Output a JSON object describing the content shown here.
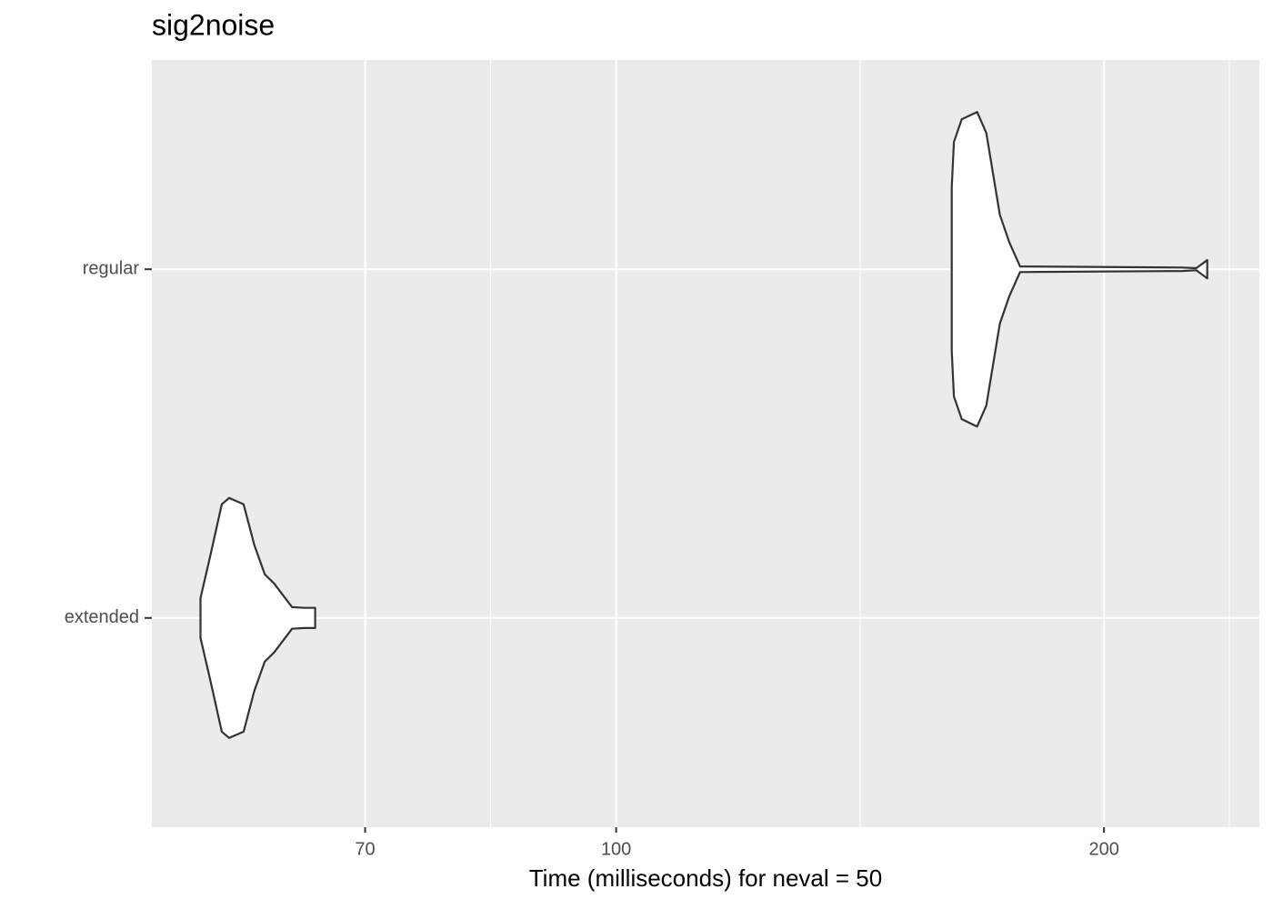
{
  "chart_data": {
    "type": "violin",
    "title": "sig2noise",
    "x_label": "Time (milliseconds) for neval = 50",
    "categories": [
      "extended",
      "regular"
    ],
    "xscale": "log",
    "xlim": [
      51.7,
      249.4
    ],
    "xticks": [
      70,
      100,
      200
    ],
    "minor_xticks": [
      83.67,
      141.42,
      239
    ],
    "grid": true,
    "series": [
      {
        "name": "extended",
        "color": "#ffffff",
        "x": [
          55.4,
          56.2,
          57.1,
          57.7,
          58.9,
          59.8,
          60.7,
          61.5,
          63.1,
          64.2,
          65.2
        ],
        "density": [
          0.057,
          0.182,
          0.326,
          0.344,
          0.326,
          0.209,
          0.125,
          0.099,
          0.031,
          0.029,
          0.029
        ]
      },
      {
        "name": "regular",
        "color": "#ffffff",
        "x": [
          161.1,
          161.6,
          163.4,
          167.0,
          169.2,
          172.5,
          174.8,
          177.5,
          223.4,
          228.0,
          231.6
        ],
        "density": [
          0.235,
          0.365,
          0.43,
          0.451,
          0.391,
          0.156,
          0.078,
          0.008,
          0.005,
          0.003,
          0.026
        ]
      }
    ]
  }
}
